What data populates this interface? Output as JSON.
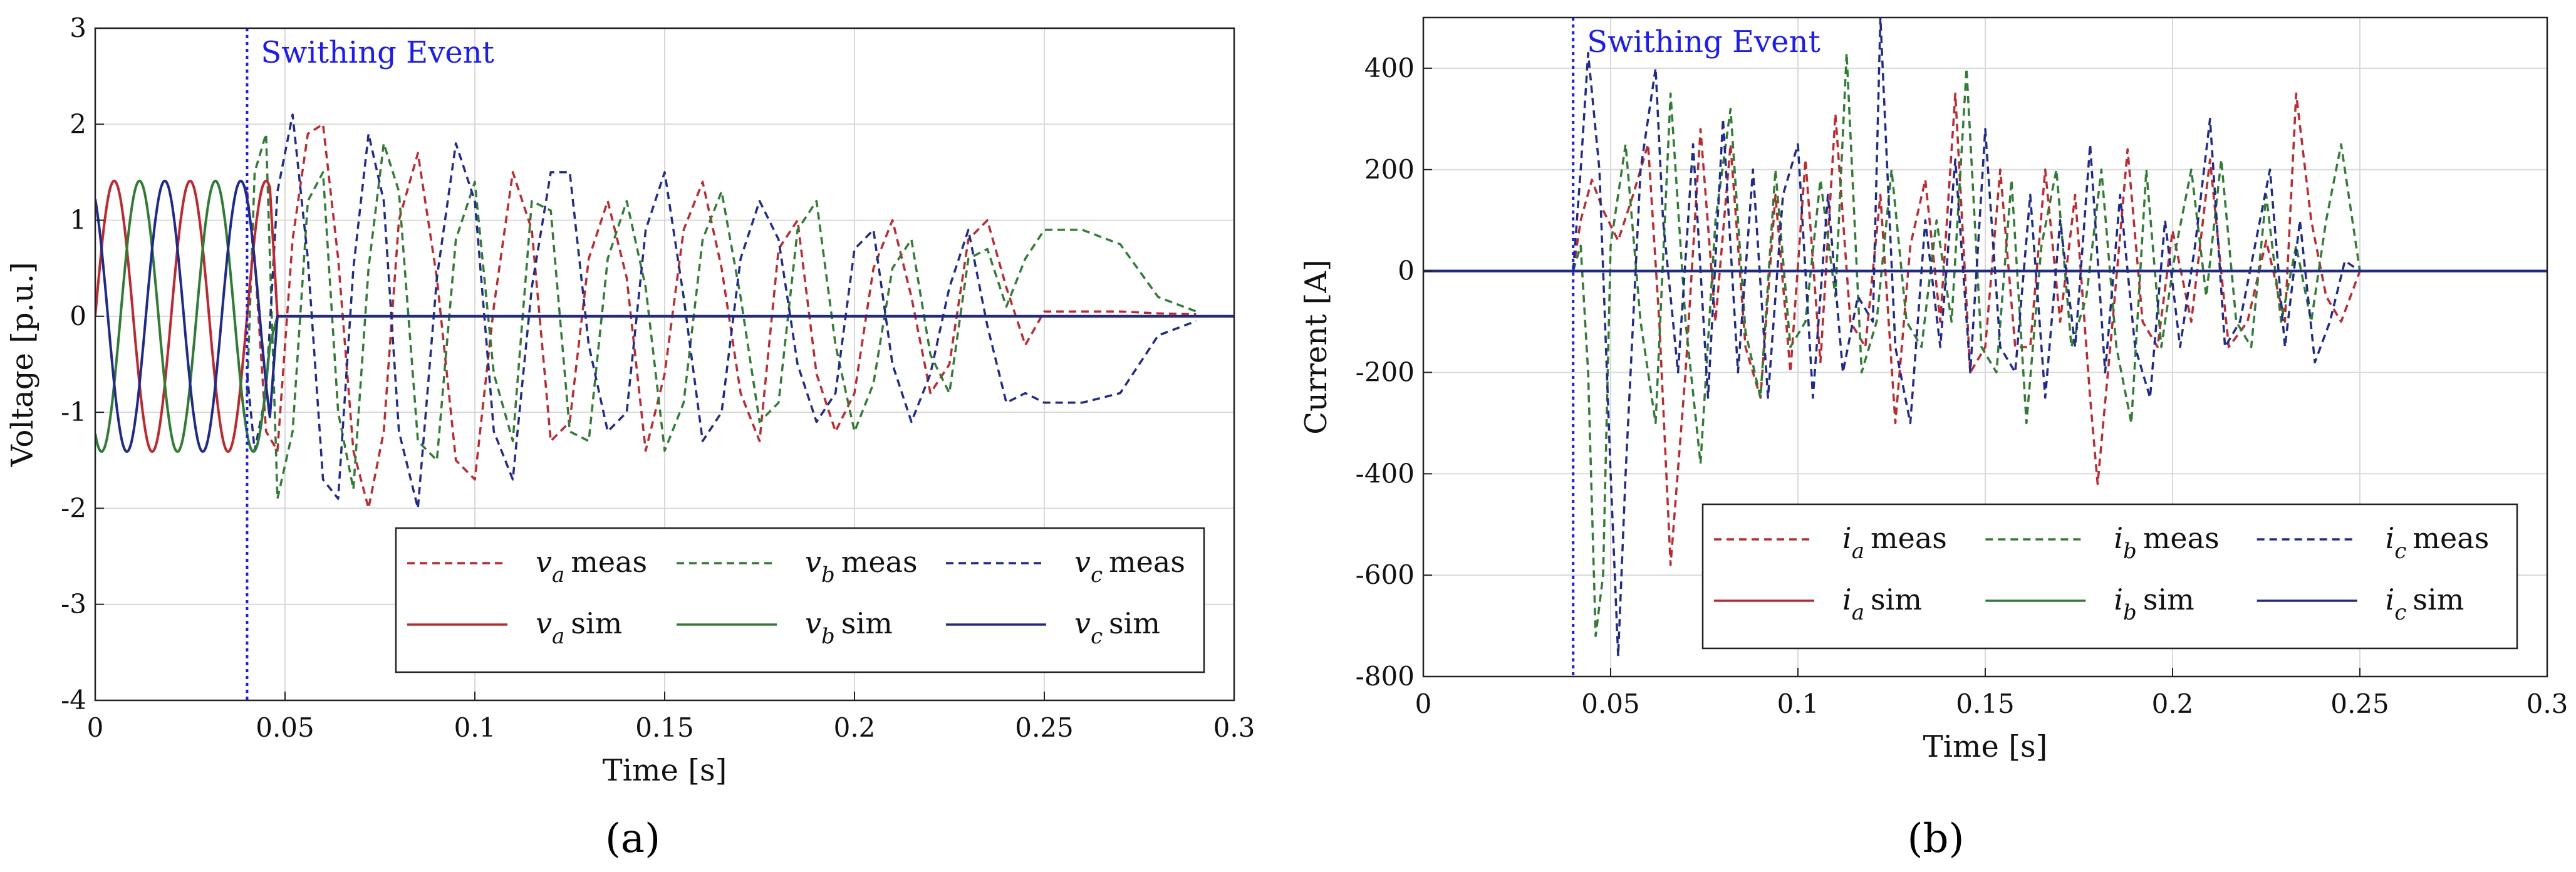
{
  "figure": {
    "caption_a": "(a)",
    "caption_b": "(b)"
  },
  "chart_data": [
    {
      "type": "line",
      "panel": "a",
      "xlabel": "Time [s]",
      "ylabel": "Voltage [p.u.]",
      "xlim": [
        0,
        0.3
      ],
      "ylim": [
        -4,
        3
      ],
      "xticks": [
        0,
        0.05,
        0.1,
        0.15,
        0.2,
        0.25,
        0.3
      ],
      "xtick_labels": [
        "0",
        "0.05",
        "0.1",
        "0.15",
        "0.2",
        "0.25",
        "0.3"
      ],
      "yticks": [
        3,
        2,
        1,
        0,
        -1,
        -2,
        -3,
        -4
      ],
      "ytick_labels": [
        "3",
        "2",
        "1",
        "0",
        "-1",
        "-2",
        "-3",
        "-4"
      ],
      "grid": true,
      "event": {
        "x": 0.04,
        "label": "Swithing Event",
        "color": "#1a1aff"
      },
      "legend": {
        "placement": "lower-right",
        "entries": [
          {
            "sym": "v",
            "sub": "a",
            "text": "meas",
            "style": "dashed",
            "color": "#c0282d"
          },
          {
            "sym": "v",
            "sub": "b",
            "text": "meas",
            "style": "dashed",
            "color": "#2e7d32"
          },
          {
            "sym": "v",
            "sub": "c",
            "text": "meas",
            "style": "dashed",
            "color": "#1f2a8f"
          },
          {
            "sym": "v",
            "sub": "a",
            "text": "sim",
            "style": "solid",
            "color": "#c0282d"
          },
          {
            "sym": "v",
            "sub": "b",
            "text": "sim",
            "style": "solid",
            "color": "#2e7d32"
          },
          {
            "sym": "v",
            "sub": "c",
            "text": "sim",
            "style": "solid",
            "color": "#1f2a8f"
          }
        ]
      },
      "series": [
        {
          "name": "va meas",
          "style": "dashed",
          "color": "#c0282d",
          "x": [
            0.04,
            0.042,
            0.045,
            0.048,
            0.052,
            0.056,
            0.06,
            0.064,
            0.068,
            0.072,
            0.076,
            0.08,
            0.085,
            0.09,
            0.095,
            0.1,
            0.105,
            0.11,
            0.115,
            0.12,
            0.125,
            0.13,
            0.135,
            0.14,
            0.145,
            0.15,
            0.155,
            0.16,
            0.165,
            0.17,
            0.175,
            0.18,
            0.185,
            0.19,
            0.195,
            0.2,
            0.205,
            0.21,
            0.215,
            0.22,
            0.225,
            0.23,
            0.235,
            0.24,
            0.245,
            0.25,
            0.26,
            0.27,
            0.28,
            0.29
          ],
          "y": [
            1.3,
            0.6,
            -1.2,
            -1.4,
            0.8,
            1.9,
            2.0,
            0.6,
            -1.4,
            -2.0,
            -1.2,
            1.0,
            1.7,
            0.4,
            -1.5,
            -1.7,
            0.1,
            1.5,
            0.9,
            -1.3,
            -1.1,
            0.6,
            1.2,
            0.4,
            -1.4,
            -0.6,
            0.9,
            1.4,
            0.5,
            -0.8,
            -1.3,
            0.7,
            1.0,
            -0.6,
            -1.2,
            -0.8,
            0.5,
            1.0,
            0.2,
            -0.8,
            -0.5,
            0.8,
            1.0,
            0.3,
            -0.3,
            0.05,
            0.05,
            0.05,
            0.03,
            0.02
          ]
        },
        {
          "name": "vb meas",
          "style": "dashed",
          "color": "#2e7d32",
          "x": [
            0.04,
            0.042,
            0.045,
            0.048,
            0.052,
            0.056,
            0.06,
            0.064,
            0.068,
            0.072,
            0.076,
            0.08,
            0.085,
            0.09,
            0.095,
            0.1,
            0.105,
            0.11,
            0.115,
            0.12,
            0.125,
            0.13,
            0.135,
            0.14,
            0.145,
            0.15,
            0.155,
            0.16,
            0.165,
            0.17,
            0.175,
            0.18,
            0.185,
            0.19,
            0.195,
            0.2,
            0.205,
            0.21,
            0.215,
            0.22,
            0.225,
            0.23,
            0.235,
            0.24,
            0.245,
            0.25,
            0.26,
            0.27,
            0.28,
            0.29
          ],
          "y": [
            -0.8,
            1.5,
            1.9,
            -1.9,
            -1.2,
            1.2,
            1.5,
            -1.0,
            -1.8,
            0.5,
            1.8,
            1.3,
            -1.3,
            -1.5,
            0.8,
            1.4,
            -0.6,
            -1.3,
            1.2,
            1.1,
            -1.2,
            -1.3,
            0.6,
            1.2,
            0.3,
            -1.4,
            -0.9,
            0.8,
            1.3,
            0.2,
            -1.1,
            -0.9,
            0.9,
            1.2,
            -0.3,
            -1.2,
            -0.7,
            0.5,
            0.8,
            -0.4,
            -0.8,
            0.6,
            0.7,
            0.1,
            0.6,
            0.9,
            0.9,
            0.75,
            0.2,
            0.05
          ]
        },
        {
          "name": "vc meas",
          "style": "dashed",
          "color": "#1f2a8f",
          "x": [
            0.04,
            0.042,
            0.045,
            0.048,
            0.052,
            0.056,
            0.06,
            0.064,
            0.068,
            0.072,
            0.076,
            0.08,
            0.085,
            0.09,
            0.095,
            0.1,
            0.105,
            0.11,
            0.115,
            0.12,
            0.125,
            0.13,
            0.135,
            0.14,
            0.145,
            0.15,
            0.155,
            0.16,
            0.165,
            0.17,
            0.175,
            0.18,
            0.185,
            0.19,
            0.195,
            0.2,
            0.205,
            0.21,
            0.215,
            0.22,
            0.225,
            0.23,
            0.235,
            0.24,
            0.245,
            0.25,
            0.26,
            0.27,
            0.28,
            0.29
          ],
          "y": [
            -0.6,
            -1.4,
            -0.8,
            1.3,
            2.1,
            0.6,
            -1.7,
            -1.9,
            0.5,
            1.9,
            1.2,
            -1.2,
            -2.0,
            0.4,
            1.8,
            1.2,
            -1.2,
            -1.7,
            0.3,
            1.5,
            1.5,
            -0.3,
            -1.2,
            -1.0,
            0.9,
            1.5,
            0.2,
            -1.3,
            -1.0,
            0.6,
            1.2,
            0.8,
            -0.5,
            -1.1,
            -0.8,
            0.7,
            0.9,
            -0.5,
            -1.1,
            -0.6,
            0.3,
            0.9,
            -0.1,
            -0.9,
            -0.8,
            -0.9,
            -0.9,
            -0.8,
            -0.2,
            -0.05
          ]
        },
        {
          "name": "va sim",
          "style": "solid",
          "color": "#c0282d",
          "kind": "sine-then-zero",
          "amplitude": 1.41,
          "frequency_hz": 50,
          "phase_deg": 0,
          "cutoff": 0.046,
          "x_end": 0.3
        },
        {
          "name": "vb sim",
          "style": "solid",
          "color": "#2e7d32",
          "kind": "sine-then-zero",
          "amplitude": 1.41,
          "frequency_hz": 50,
          "phase_deg": -120,
          "cutoff": 0.046,
          "x_end": 0.3
        },
        {
          "name": "vc sim",
          "style": "solid",
          "color": "#1f2a8f",
          "kind": "sine-then-zero",
          "amplitude": 1.41,
          "frequency_hz": 50,
          "phase_deg": 120,
          "cutoff": 0.046,
          "x_end": 0.3
        }
      ]
    },
    {
      "type": "line",
      "panel": "b",
      "xlabel": "Time [s]",
      "ylabel": "Current [A]",
      "xlim": [
        0,
        0.3
      ],
      "ylim": [
        -800,
        500
      ],
      "xticks": [
        0,
        0.05,
        0.1,
        0.15,
        0.2,
        0.25,
        0.3
      ],
      "xtick_labels": [
        "0",
        "0.05",
        "0.1",
        "0.15",
        "0.2",
        "0.25",
        "0.3"
      ],
      "yticks": [
        400,
        200,
        0,
        -200,
        -400,
        -600,
        -800
      ],
      "ytick_labels": [
        "400",
        "200",
        "0",
        "-200",
        "-400",
        "-600",
        "-800"
      ],
      "grid": true,
      "event": {
        "x": 0.04,
        "label": "Swithing Event",
        "color": "#1a1aff"
      },
      "legend": {
        "placement": "lower-right",
        "entries": [
          {
            "sym": "i",
            "sub": "a",
            "text": "meas",
            "style": "dashed",
            "color": "#c0282d"
          },
          {
            "sym": "i",
            "sub": "b",
            "text": "meas",
            "style": "dashed",
            "color": "#2e7d32"
          },
          {
            "sym": "i",
            "sub": "c",
            "text": "meas",
            "style": "dashed",
            "color": "#1f2a8f"
          },
          {
            "sym": "i",
            "sub": "a",
            "text": "sim",
            "style": "solid",
            "color": "#c0282d"
          },
          {
            "sym": "i",
            "sub": "b",
            "text": "sim",
            "style": "solid",
            "color": "#2e7d32"
          },
          {
            "sym": "i",
            "sub": "c",
            "text": "sim",
            "style": "solid",
            "color": "#1f2a8f"
          }
        ]
      },
      "series": [
        {
          "name": "ia meas",
          "style": "dashed",
          "color": "#c0282d",
          "x": [
            0,
            0.04,
            0.042,
            0.045,
            0.048,
            0.052,
            0.056,
            0.06,
            0.063,
            0.066,
            0.07,
            0.074,
            0.078,
            0.082,
            0.086,
            0.09,
            0.094,
            0.098,
            0.102,
            0.106,
            0.11,
            0.114,
            0.118,
            0.122,
            0.126,
            0.13,
            0.134,
            0.138,
            0.142,
            0.146,
            0.15,
            0.154,
            0.158,
            0.162,
            0.166,
            0.17,
            0.174,
            0.178,
            0.18,
            0.184,
            0.188,
            0.192,
            0.196,
            0.2,
            0.205,
            0.21,
            0.215,
            0.22,
            0.225,
            0.23,
            0.233,
            0.237,
            0.241,
            0.245,
            0.25,
            0.3
          ],
          "y": [
            0,
            0,
            100,
            180,
            120,
            60,
            150,
            250,
            -100,
            -580,
            -200,
            280,
            -100,
            250,
            -150,
            -250,
            150,
            -200,
            220,
            -180,
            310,
            -100,
            -150,
            150,
            -300,
            50,
            180,
            -100,
            350,
            -200,
            -150,
            200,
            -150,
            -150,
            200,
            -100,
            150,
            -250,
            -420,
            -100,
            240,
            -100,
            -150,
            80,
            -100,
            220,
            -150,
            -100,
            60,
            -100,
            350,
            100,
            -50,
            -100,
            0,
            0
          ]
        },
        {
          "name": "ib meas",
          "style": "dashed",
          "color": "#2e7d32",
          "x": [
            0,
            0.04,
            0.042,
            0.044,
            0.046,
            0.048,
            0.05,
            0.054,
            0.058,
            0.062,
            0.066,
            0.07,
            0.074,
            0.078,
            0.082,
            0.086,
            0.09,
            0.094,
            0.098,
            0.102,
            0.106,
            0.11,
            0.113,
            0.117,
            0.121,
            0.125,
            0.129,
            0.133,
            0.137,
            0.141,
            0.145,
            0.149,
            0.153,
            0.157,
            0.161,
            0.165,
            0.169,
            0.173,
            0.177,
            0.181,
            0.185,
            0.189,
            0.193,
            0.197,
            0.201,
            0.205,
            0.209,
            0.213,
            0.217,
            0.221,
            0.225,
            0.229,
            0.233,
            0.237,
            0.241,
            0.245,
            0.25,
            0.3
          ],
          "y": [
            0,
            0,
            50,
            -200,
            -720,
            -600,
            50,
            250,
            -100,
            -300,
            350,
            -100,
            -380,
            100,
            320,
            -120,
            -250,
            200,
            -150,
            -100,
            180,
            -50,
            430,
            -200,
            -100,
            200,
            -100,
            -150,
            100,
            -100,
            400,
            -150,
            -200,
            180,
            -300,
            50,
            200,
            -150,
            -50,
            200,
            -150,
            -300,
            200,
            -150,
            50,
            200,
            -50,
            220,
            -100,
            -150,
            150,
            -100,
            50,
            -100,
            100,
            250,
            0,
            0
          ]
        },
        {
          "name": "ic meas",
          "style": "dashed",
          "color": "#1f2a8f",
          "x": [
            0,
            0.04,
            0.042,
            0.044,
            0.047,
            0.05,
            0.052,
            0.054,
            0.058,
            0.062,
            0.064,
            0.068,
            0.072,
            0.076,
            0.08,
            0.084,
            0.088,
            0.092,
            0.096,
            0.1,
            0.104,
            0.108,
            0.112,
            0.116,
            0.12,
            0.122,
            0.126,
            0.13,
            0.134,
            0.138,
            0.142,
            0.146,
            0.15,
            0.154,
            0.158,
            0.162,
            0.166,
            0.17,
            0.174,
            0.178,
            0.182,
            0.186,
            0.19,
            0.194,
            0.198,
            0.202,
            0.206,
            0.21,
            0.214,
            0.218,
            0.222,
            0.226,
            0.23,
            0.234,
            0.238,
            0.242,
            0.246,
            0.25,
            0.3
          ],
          "y": [
            0,
            0,
            200,
            430,
            200,
            -400,
            -760,
            -400,
            200,
            400,
            100,
            -200,
            250,
            -250,
            300,
            -200,
            200,
            -250,
            150,
            250,
            -250,
            150,
            -200,
            -50,
            -100,
            500,
            -150,
            -300,
            100,
            -150,
            220,
            -200,
            280,
            -150,
            -200,
            150,
            -250,
            100,
            -150,
            250,
            -200,
            150,
            -150,
            -250,
            100,
            -150,
            50,
            300,
            -150,
            -100,
            50,
            200,
            -150,
            100,
            -180,
            -100,
            20,
            0,
            0
          ]
        },
        {
          "name": "ia sim",
          "style": "solid",
          "color": "#c0282d",
          "kind": "flat",
          "value": 0,
          "x": [
            0,
            0.3
          ]
        },
        {
          "name": "ib sim",
          "style": "solid",
          "color": "#2e7d32",
          "kind": "flat",
          "value": 0,
          "x": [
            0,
            0.3
          ]
        },
        {
          "name": "ic sim",
          "style": "solid",
          "color": "#1f2a8f",
          "kind": "flat",
          "value": 0,
          "x": [
            0,
            0.3
          ]
        }
      ]
    }
  ]
}
